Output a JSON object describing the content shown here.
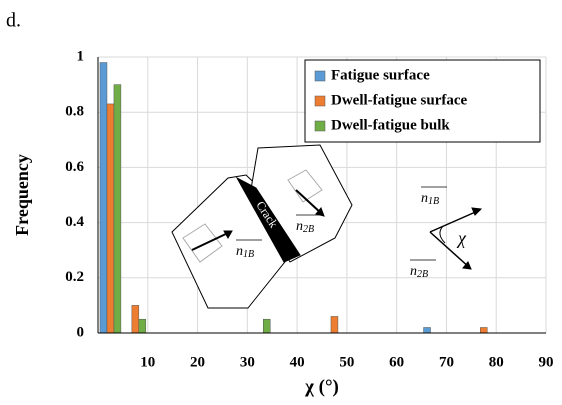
{
  "chart_data": {
    "type": "bar",
    "panel_label": "d.",
    "x_label": "χ (°)",
    "y_label": "Frequency",
    "x": [
      2.5,
      7.5,
      32.5,
      47.5,
      67.5,
      77.5
    ],
    "series": [
      {
        "name": "Fatigue surface",
        "color": "#5b9bd5",
        "values": [
          0.98,
          0,
          0,
          0,
          0.02,
          0
        ]
      },
      {
        "name": "Dwell-fatigue surface",
        "color": "#ed7d31",
        "values": [
          0.83,
          0.1,
          0,
          0.06,
          0,
          0.02
        ]
      },
      {
        "name": "Dwell-fatigue bulk",
        "color": "#70ad47",
        "values": [
          0.9,
          0.05,
          0.05,
          0,
          0,
          0
        ]
      }
    ],
    "xlim": [
      0,
      90
    ],
    "xticks": [
      10,
      20,
      30,
      40,
      50,
      60,
      70,
      80,
      90
    ],
    "ylim": [
      0,
      1
    ],
    "yticks": [
      0,
      0.2,
      0.4,
      0.6,
      0.8,
      1
    ],
    "grid": true,
    "legend": "top-right",
    "annotations": [
      "Crack",
      "n",
      "1B",
      "n",
      "2B",
      "n",
      "1B",
      "n",
      "2B",
      "χ"
    ]
  }
}
